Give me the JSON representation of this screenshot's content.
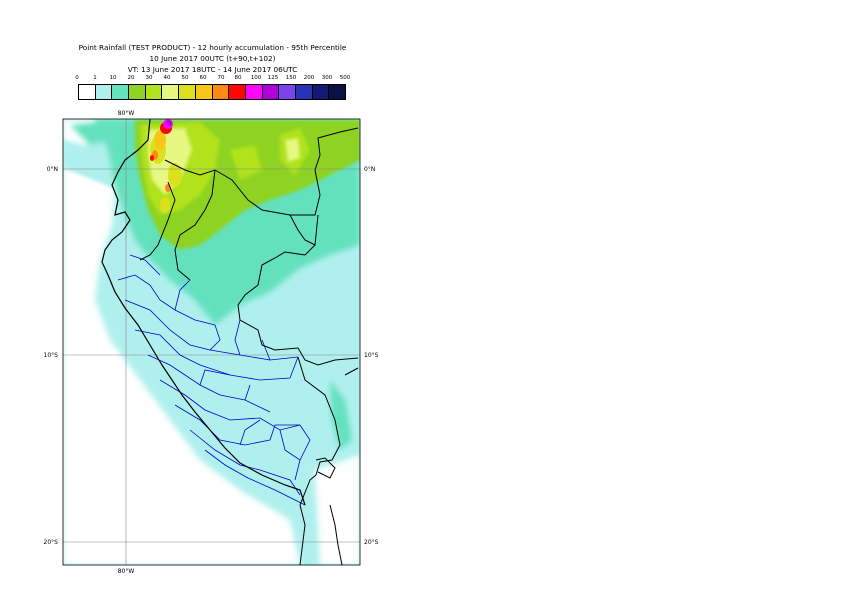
{
  "header": {
    "title": "Point Rainfall (TEST PRODUCT) - 12 hourly accumulation - 95th Percentile",
    "base_time": "10 June 2017 00UTC (t+90,t+102)",
    "valid_time": "VT: 13 June 2017 18UTC - 14 June 2017 06UTC"
  },
  "legend": {
    "thresholds": [
      "0",
      "1",
      "10",
      "20",
      "30",
      "40",
      "50",
      "60",
      "70",
      "80",
      "100",
      "125",
      "150",
      "200",
      "300",
      "500"
    ],
    "colors": [
      "#ffffff",
      "#aff0ee",
      "#64e1bd",
      "#8ed323",
      "#b1e21f",
      "#e6f882",
      "#dbe21d",
      "#f6c716",
      "#ff8917",
      "#ff0600",
      "#ff06fe",
      "#af00db",
      "#7c42ee",
      "#2a32b8",
      "#131972",
      "#091240"
    ]
  },
  "map": {
    "labels": {
      "lon_top": "80°W",
      "lon_bottom": "80°W",
      "lat_0_left": "0°N",
      "lat_0_right": "0°N",
      "lat_10_left": "10°S",
      "lat_10_right": "10°S",
      "lat_20_left": "20°S",
      "lat_20_right": "20°S"
    },
    "region": "Peru / Ecuador",
    "extent": {
      "lon": [
        -83,
        -69
      ],
      "lat": [
        -21,
        2.7
      ]
    },
    "background_color": "#aff0ee",
    "coast_color": "#000000",
    "admin_border_color": "#0000cc"
  }
}
